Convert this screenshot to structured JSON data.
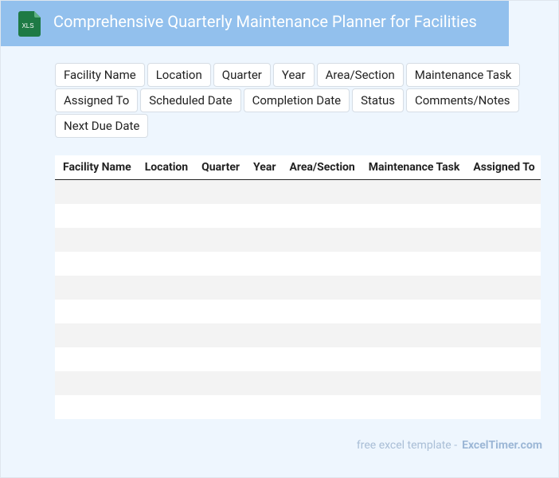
{
  "header": {
    "icon_label": "XLS",
    "title": "Comprehensive Quarterly Maintenance Planner for Facilities"
  },
  "fields": [
    "Facility Name",
    "Location",
    "Quarter",
    "Year",
    "Area/Section",
    "Maintenance Task",
    "Assigned To",
    "Scheduled Date",
    "Completion Date",
    "Status",
    "Comments/Notes",
    "Next Due Date"
  ],
  "table": {
    "columns": [
      "Facility Name",
      "Location",
      "Quarter",
      "Year",
      "Area/Section",
      "Maintenance Task",
      "Assigned To"
    ]
  },
  "footer": {
    "text": "free excel template -",
    "link": "ExcelTimer.com"
  }
}
